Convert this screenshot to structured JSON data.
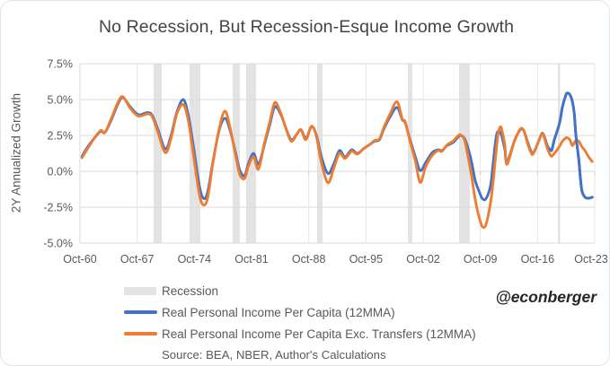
{
  "chart_data": {
    "type": "line",
    "title": "No Recession, But Recession-Esque Income Growth",
    "ylabel": "2Y Annualized Growth",
    "xlabel": "",
    "source": "Source: BEA, NBER, Author's Calculations",
    "watermark": "@econberger",
    "recession_label": "Recession",
    "grid": true,
    "legend_position": "bottom-left",
    "xlim": [
      1960.75,
      2023.75
    ],
    "ylim": [
      -5.0,
      7.5
    ],
    "x_ticks": [
      {
        "label": "Oct-60",
        "year": 1960.75
      },
      {
        "label": "Oct-67",
        "year": 1967.75
      },
      {
        "label": "Oct-74",
        "year": 1974.75
      },
      {
        "label": "Oct-81",
        "year": 1981.75
      },
      {
        "label": "Oct-88",
        "year": 1988.75
      },
      {
        "label": "Oct-95",
        "year": 1995.75
      },
      {
        "label": "Oct-02",
        "year": 2002.75
      },
      {
        "label": "Oct-09",
        "year": 2009.75
      },
      {
        "label": "Oct-16",
        "year": 2016.75
      },
      {
        "label": "Oct-23",
        "year": 2023.75
      }
    ],
    "y_ticks": [
      {
        "label": "7.5%",
        "value": 7.5
      },
      {
        "label": "5.0%",
        "value": 5.0
      },
      {
        "label": "2.5%",
        "value": 2.5
      },
      {
        "label": "0.0%",
        "value": 0.0
      },
      {
        "label": "-2.5%",
        "value": -2.5
      },
      {
        "label": "-5.0%",
        "value": -5.0
      }
    ],
    "recession_bands": [
      [
        1969.77,
        1970.76
      ],
      [
        1974.16,
        1975.48
      ],
      [
        1979.44,
        1980.32
      ],
      [
        1981.09,
        1982.3
      ],
      [
        1989.78,
        1990.44
      ],
      [
        2000.88,
        2001.43
      ],
      [
        2007.15,
        2008.47
      ],
      [
        2019.24,
        2019.52
      ]
    ],
    "colors": {
      "blue": "#4472C4",
      "orange": "#ED7D31",
      "recession": "#e3e3e3",
      "grid_h": "#d9d9d9",
      "grid_v": "#e7e7e7",
      "axis": "#cfcfcf",
      "text": "#595959",
      "title": "#444444"
    },
    "series": [
      {
        "name": "Real Personal Income Per Capita (12MMA)",
        "color": "#4472C4",
        "points": [
          [
            1961.0,
            1.05
          ],
          [
            1961.7,
            1.7
          ],
          [
            1962.5,
            2.3
          ],
          [
            1963.3,
            2.8
          ],
          [
            1963.8,
            2.7
          ],
          [
            1964.6,
            3.6
          ],
          [
            1965.4,
            4.7
          ],
          [
            1966.0,
            5.15
          ],
          [
            1966.9,
            4.5
          ],
          [
            1967.9,
            3.95
          ],
          [
            1969.0,
            4.1
          ],
          [
            1969.6,
            3.9
          ],
          [
            1970.3,
            2.9
          ],
          [
            1971.2,
            1.55
          ],
          [
            1971.9,
            2.5
          ],
          [
            1972.6,
            4.1
          ],
          [
            1973.4,
            5.0
          ],
          [
            1974.05,
            3.8
          ],
          [
            1974.7,
            1.5
          ],
          [
            1975.4,
            -1.1
          ],
          [
            1975.9,
            -1.9
          ],
          [
            1976.4,
            -1.4
          ],
          [
            1977.0,
            0.6
          ],
          [
            1977.8,
            2.9
          ],
          [
            1978.5,
            3.7
          ],
          [
            1979.1,
            2.9
          ],
          [
            1979.8,
            1.3
          ],
          [
            1980.3,
            0.1
          ],
          [
            1980.9,
            -0.3
          ],
          [
            1981.4,
            0.6
          ],
          [
            1982.0,
            1.25
          ],
          [
            1982.6,
            0.5
          ],
          [
            1983.3,
            1.8
          ],
          [
            1984.0,
            3.3
          ],
          [
            1984.6,
            4.5
          ],
          [
            1985.3,
            4.0
          ],
          [
            1985.9,
            3.1
          ],
          [
            1986.6,
            2.2
          ],
          [
            1987.3,
            2.6
          ],
          [
            1987.8,
            2.9
          ],
          [
            1988.4,
            2.3
          ],
          [
            1989.1,
            3.1
          ],
          [
            1989.7,
            2.5
          ],
          [
            1990.3,
            1.0
          ],
          [
            1991.1,
            -0.15
          ],
          [
            1991.8,
            0.5
          ],
          [
            1992.5,
            1.45
          ],
          [
            1993.2,
            1.0
          ],
          [
            1994.0,
            1.5
          ],
          [
            1994.7,
            1.25
          ],
          [
            1995.5,
            1.6
          ],
          [
            1996.3,
            1.9
          ],
          [
            1996.8,
            2.1
          ],
          [
            1997.4,
            2.2
          ],
          [
            1997.9,
            2.9
          ],
          [
            1998.7,
            3.8
          ],
          [
            1999.55,
            4.45
          ],
          [
            2000.2,
            3.6
          ],
          [
            2000.55,
            3.4
          ],
          [
            2001.1,
            2.3
          ],
          [
            2001.8,
            1.0
          ],
          [
            2002.4,
            0.05
          ],
          [
            2003.05,
            0.6
          ],
          [
            2003.85,
            1.3
          ],
          [
            2004.6,
            1.5
          ],
          [
            2005.05,
            1.45
          ],
          [
            2005.7,
            1.8
          ],
          [
            2006.4,
            2.0
          ],
          [
            2006.9,
            2.3
          ],
          [
            2007.3,
            2.5
          ],
          [
            2007.8,
            2.3
          ],
          [
            2008.25,
            1.6
          ],
          [
            2008.7,
            0.6
          ],
          [
            2009.1,
            -0.6
          ],
          [
            2009.6,
            -1.4
          ],
          [
            2010.0,
            -1.9
          ],
          [
            2010.45,
            -1.9
          ],
          [
            2011.0,
            -1.0
          ],
          [
            2011.3,
            0.5
          ],
          [
            2011.55,
            1.8
          ],
          [
            2011.75,
            2.6
          ],
          [
            2011.95,
            2.8
          ],
          [
            2012.2,
            2.7
          ],
          [
            2012.4,
            2.4
          ],
          [
            2012.75,
            1.5
          ],
          [
            2012.95,
            0.55
          ],
          [
            2013.4,
            1.2
          ],
          [
            2013.85,
            2.0
          ],
          [
            2014.3,
            2.6
          ],
          [
            2014.75,
            2.95
          ],
          [
            2015.1,
            2.8
          ],
          [
            2015.5,
            2.1
          ],
          [
            2015.95,
            1.4
          ],
          [
            2016.2,
            1.25
          ],
          [
            2016.6,
            1.7
          ],
          [
            2016.95,
            2.2
          ],
          [
            2017.3,
            2.65
          ],
          [
            2017.6,
            2.4
          ],
          [
            2017.95,
            1.8
          ],
          [
            2018.3,
            1.5
          ],
          [
            2018.5,
            1.5
          ],
          [
            2018.8,
            2.2
          ],
          [
            2019.15,
            2.8
          ],
          [
            2019.5,
            3.5
          ],
          [
            2019.8,
            4.5
          ],
          [
            2020.15,
            5.2
          ],
          [
            2020.35,
            5.45
          ],
          [
            2020.7,
            5.35
          ],
          [
            2021.0,
            4.9
          ],
          [
            2021.25,
            4.0
          ],
          [
            2021.45,
            2.5
          ],
          [
            2021.8,
            0.8
          ],
          [
            2022.0,
            -0.5
          ],
          [
            2022.2,
            -1.4
          ],
          [
            2022.55,
            -1.8
          ],
          [
            2022.9,
            -1.87
          ],
          [
            2023.2,
            -1.85
          ],
          [
            2023.45,
            -1.8
          ]
        ]
      },
      {
        "name": "Real Personal Income Per Capita Exc. Transfers (12MMA)",
        "color": "#ED7D31",
        "points": [
          [
            1961.0,
            0.95
          ],
          [
            1961.7,
            1.6
          ],
          [
            1962.5,
            2.3
          ],
          [
            1963.3,
            2.85
          ],
          [
            1963.8,
            2.7
          ],
          [
            1964.6,
            3.7
          ],
          [
            1965.4,
            4.8
          ],
          [
            1966.0,
            5.2
          ],
          [
            1966.9,
            4.4
          ],
          [
            1967.9,
            3.85
          ],
          [
            1969.0,
            4.0
          ],
          [
            1969.6,
            3.8
          ],
          [
            1970.3,
            2.7
          ],
          [
            1971.2,
            1.3
          ],
          [
            1971.9,
            2.3
          ],
          [
            1972.6,
            4.0
          ],
          [
            1973.4,
            4.65
          ],
          [
            1974.05,
            3.4
          ],
          [
            1974.7,
            0.9
          ],
          [
            1975.4,
            -1.7
          ],
          [
            1975.9,
            -2.35
          ],
          [
            1976.4,
            -1.8
          ],
          [
            1977.0,
            0.5
          ],
          [
            1977.8,
            3.0
          ],
          [
            1978.5,
            4.2
          ],
          [
            1979.1,
            3.1
          ],
          [
            1979.8,
            1.1
          ],
          [
            1980.3,
            -0.2
          ],
          [
            1980.9,
            -0.5
          ],
          [
            1981.4,
            0.4
          ],
          [
            1982.0,
            1.0
          ],
          [
            1982.6,
            0.15
          ],
          [
            1983.3,
            1.9
          ],
          [
            1984.0,
            3.5
          ],
          [
            1984.6,
            4.8
          ],
          [
            1985.3,
            4.1
          ],
          [
            1985.9,
            3.1
          ],
          [
            1986.6,
            2.1
          ],
          [
            1987.3,
            2.6
          ],
          [
            1987.8,
            2.9
          ],
          [
            1988.4,
            2.2
          ],
          [
            1989.1,
            3.15
          ],
          [
            1989.7,
            2.4
          ],
          [
            1990.3,
            0.6
          ],
          [
            1991.1,
            -0.8
          ],
          [
            1991.8,
            0.2
          ],
          [
            1992.5,
            1.25
          ],
          [
            1993.2,
            0.9
          ],
          [
            1994.0,
            1.4
          ],
          [
            1994.7,
            1.2
          ],
          [
            1995.5,
            1.6
          ],
          [
            1996.3,
            1.9
          ],
          [
            1996.8,
            2.15
          ],
          [
            1997.4,
            2.25
          ],
          [
            1997.9,
            3.0
          ],
          [
            1998.7,
            4.0
          ],
          [
            1999.55,
            4.85
          ],
          [
            2000.2,
            3.65
          ],
          [
            2000.55,
            3.45
          ],
          [
            2001.1,
            2.2
          ],
          [
            2001.8,
            0.7
          ],
          [
            2002.4,
            -0.78
          ],
          [
            2003.05,
            0.3
          ],
          [
            2003.85,
            1.1
          ],
          [
            2004.6,
            1.45
          ],
          [
            2005.05,
            1.4
          ],
          [
            2005.7,
            1.85
          ],
          [
            2006.4,
            2.1
          ],
          [
            2006.9,
            2.4
          ],
          [
            2007.3,
            2.55
          ],
          [
            2007.8,
            2.2
          ],
          [
            2008.25,
            1.0
          ],
          [
            2008.7,
            -0.4
          ],
          [
            2009.1,
            -1.9
          ],
          [
            2009.6,
            -3.2
          ],
          [
            2010.0,
            -3.85
          ],
          [
            2010.45,
            -3.7
          ],
          [
            2011.0,
            -2.2
          ],
          [
            2011.3,
            -0.8
          ],
          [
            2011.55,
            0.6
          ],
          [
            2011.75,
            1.8
          ],
          [
            2011.95,
            2.7
          ],
          [
            2012.2,
            3.1
          ],
          [
            2012.4,
            2.85
          ],
          [
            2012.75,
            1.8
          ],
          [
            2012.95,
            0.5
          ],
          [
            2013.4,
            1.1
          ],
          [
            2013.85,
            2.0
          ],
          [
            2014.3,
            2.6
          ],
          [
            2014.75,
            3.0
          ],
          [
            2015.1,
            2.8
          ],
          [
            2015.5,
            2.0
          ],
          [
            2015.95,
            1.3
          ],
          [
            2016.2,
            1.2
          ],
          [
            2016.6,
            1.7
          ],
          [
            2016.95,
            2.2
          ],
          [
            2017.3,
            2.6
          ],
          [
            2017.6,
            2.3
          ],
          [
            2017.95,
            1.6
          ],
          [
            2018.3,
            1.15
          ],
          [
            2018.5,
            1.05
          ],
          [
            2018.8,
            1.25
          ],
          [
            2019.15,
            1.5
          ],
          [
            2019.5,
            1.8
          ],
          [
            2019.8,
            2.1
          ],
          [
            2020.15,
            2.3
          ],
          [
            2020.35,
            2.35
          ],
          [
            2020.7,
            2.2
          ],
          [
            2021.0,
            1.8
          ],
          [
            2021.25,
            2.0
          ],
          [
            2021.45,
            2.15
          ],
          [
            2021.8,
            2.1
          ],
          [
            2022.0,
            1.9
          ],
          [
            2022.2,
            1.7
          ],
          [
            2022.55,
            1.45
          ],
          [
            2022.9,
            1.1
          ],
          [
            2023.2,
            0.85
          ],
          [
            2023.45,
            0.68
          ]
        ]
      }
    ]
  }
}
